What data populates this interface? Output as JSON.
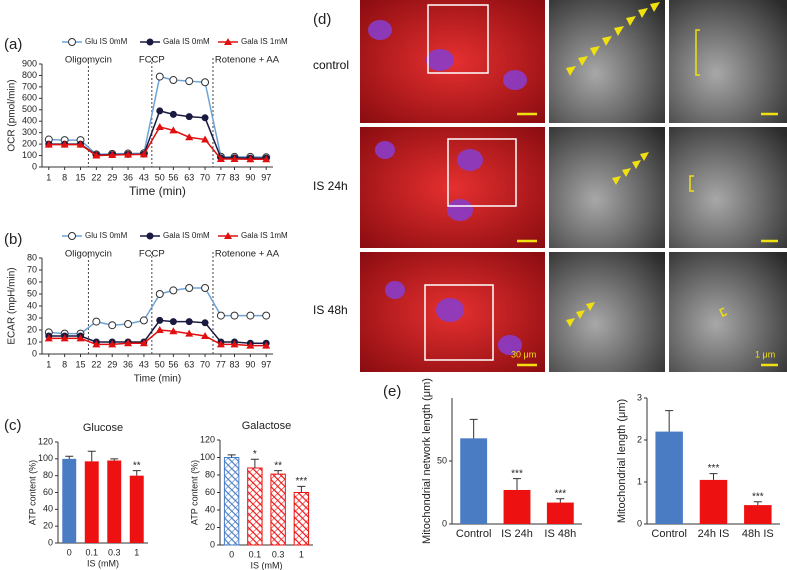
{
  "panel_labels": [
    "(a)",
    "(b)",
    "(c)",
    "(d)",
    "(e)"
  ],
  "microscopy": {
    "rows": [
      "control",
      "IS 24h",
      "IS 48h"
    ],
    "scale_bars": [
      "30 μm",
      "1 μm"
    ]
  },
  "chart_data": [
    {
      "type": "line",
      "x_label": "Time (min)",
      "y_label": "OCR (pmol/min)",
      "x": [
        1,
        8,
        15,
        22,
        29,
        36,
        43,
        50,
        56,
        63,
        70,
        77,
        83,
        90,
        97
      ],
      "xlim": [
        -2,
        100
      ],
      "xticks": [
        1,
        8,
        15,
        22,
        29,
        36,
        43,
        50,
        56,
        63,
        70,
        77,
        83,
        90,
        97
      ],
      "ylim": [
        0,
        900
      ],
      "yticks": [
        0,
        100,
        200,
        300,
        400,
        500,
        600,
        700,
        800,
        900
      ],
      "events": [
        {
          "label": "Oligomycin",
          "x": 18.5
        },
        {
          "label": "FCCP",
          "x": 46.5
        },
        {
          "label": "Rotenone + AA",
          "x": 73.5
        }
      ],
      "series": [
        {
          "name": "Glu IS 0mM",
          "color": "#6fa3d6",
          "marker": "open-circle",
          "values": [
            240,
            235,
            235,
            110,
            115,
            118,
            120,
            790,
            760,
            750,
            740,
            90,
            88,
            88,
            85
          ]
        },
        {
          "name": "Gala IS 0mM",
          "color": "#1a1a40",
          "marker": "circle",
          "values": [
            200,
            200,
            200,
            105,
            108,
            110,
            112,
            490,
            460,
            440,
            430,
            80,
            80,
            78,
            78
          ]
        },
        {
          "name": "Gala IS 1mM",
          "color": "#e01010",
          "marker": "triangle",
          "values": [
            195,
            195,
            195,
            100,
            105,
            108,
            110,
            350,
            320,
            260,
            240,
            70,
            70,
            68,
            68
          ]
        }
      ]
    },
    {
      "type": "line",
      "x_label": "Time (min)",
      "y_label": "ECAR (mpH/min)",
      "x": [
        1,
        8,
        15,
        22,
        29,
        36,
        43,
        50,
        56,
        63,
        70,
        77,
        83,
        90,
        97
      ],
      "xlim": [
        -2,
        100
      ],
      "xticks": [
        1,
        8,
        15,
        22,
        29,
        36,
        43,
        50,
        56,
        63,
        70,
        77,
        83,
        90,
        97
      ],
      "ylim": [
        0,
        80
      ],
      "yticks": [
        0,
        10,
        20,
        30,
        40,
        50,
        60,
        70,
        80
      ],
      "events": [
        {
          "label": "Oligomycin",
          "x": 18.5
        },
        {
          "label": "FCCP",
          "x": 46.5
        },
        {
          "label": "Rotenone + AA",
          "x": 73.5
        }
      ],
      "series": [
        {
          "name": "Glu IS 0mM",
          "color": "#6fa3d6",
          "marker": "open-circle",
          "values": [
            18,
            17,
            17,
            27,
            24,
            25,
            28,
            50,
            53,
            55,
            55,
            32,
            32,
            32,
            32
          ]
        },
        {
          "name": "Gala IS 0mM",
          "color": "#1a1a40",
          "marker": "circle",
          "values": [
            15,
            15,
            15,
            10,
            10,
            10,
            10,
            28,
            27,
            27,
            26,
            10,
            10,
            9,
            9
          ]
        },
        {
          "name": "Gala IS 1mM",
          "color": "#e01010",
          "marker": "triangle",
          "values": [
            13,
            13,
            13,
            8,
            8,
            9,
            9,
            20,
            19,
            17,
            15,
            8,
            8,
            7,
            7
          ]
        }
      ]
    },
    {
      "type": "bar",
      "title": "Glucose",
      "x_label": "IS (mM)",
      "y_label": "ATP content (%)",
      "hatched": false,
      "categories": [
        "0",
        "0.1",
        "0.3",
        "1"
      ],
      "values": [
        100,
        97,
        98,
        80
      ],
      "errors": [
        3,
        12,
        2,
        6
      ],
      "annotations": [
        null,
        null,
        null,
        "**"
      ],
      "colors": [
        "#4a7cc4",
        "#ee1111",
        "#ee1111",
        "#ee1111"
      ],
      "ylim": [
        0,
        120
      ],
      "yticks": [
        0,
        20,
        40,
        60,
        80,
        100,
        120
      ]
    },
    {
      "type": "bar",
      "title": "Galactose",
      "x_label": "IS (mM)",
      "y_label": "ATP content (%)",
      "hatched": true,
      "categories": [
        "0",
        "0.1",
        "0.3",
        "1"
      ],
      "values": [
        100,
        88,
        81,
        60
      ],
      "errors": [
        3,
        10,
        4,
        7
      ],
      "annotations": [
        null,
        "*",
        "**",
        "***"
      ],
      "colors": [
        "#4a7cc4",
        "#ee1111",
        "#ee1111",
        "#ee1111"
      ],
      "ylim": [
        0,
        120
      ],
      "yticks": [
        0,
        20,
        40,
        60,
        80,
        100,
        120
      ]
    },
    {
      "type": "bar",
      "y_label": "Mitochondrial network length (μm)",
      "hatched": false,
      "categories": [
        "Control",
        "IS 24h",
        "IS 48h"
      ],
      "values": [
        68,
        27,
        17
      ],
      "errors": [
        15,
        9,
        3
      ],
      "annotations": [
        null,
        "***",
        "***"
      ],
      "colors": [
        "#4a7cc4",
        "#ee1111",
        "#ee1111"
      ],
      "ylim": [
        0,
        100
      ],
      "yticks": [
        0,
        50
      ]
    },
    {
      "type": "bar",
      "y_label": "Mitochondrial length (μm)",
      "hatched": false,
      "categories": [
        "Control",
        "24h IS",
        "48h IS"
      ],
      "values": [
        2.2,
        1.05,
        0.45
      ],
      "errors": [
        0.5,
        0.15,
        0.08
      ],
      "annotations": [
        null,
        "***",
        "***"
      ],
      "colors": [
        "#4a7cc4",
        "#ee1111",
        "#ee1111"
      ],
      "ylim": [
        0,
        3
      ],
      "yticks": [
        0,
        1,
        2,
        3
      ]
    }
  ]
}
